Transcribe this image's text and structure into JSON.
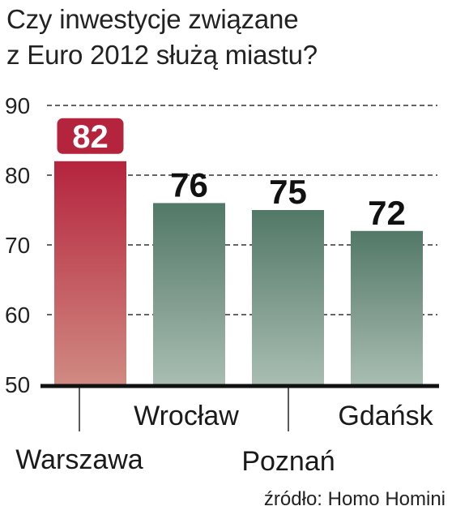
{
  "title_lines": [
    "Czy inwestycje związane",
    "z Euro 2012 służą miastu?"
  ],
  "source": "źródło: Homo Homini",
  "colors": {
    "highlight": "#b5243d",
    "highlight_light": "#d08a82",
    "bar": "#527867",
    "bar_light": "#a9bdb2",
    "grid": "#333333",
    "axis": "#111111"
  },
  "chart_data": {
    "type": "bar",
    "categories": [
      "Warszawa",
      "Wrocław",
      "Poznań",
      "Gdańsk"
    ],
    "values": [
      82,
      76,
      75,
      72
    ],
    "value_labels": [
      "82",
      "76",
      "75",
      "72"
    ],
    "highlighted": [
      "Warszawa"
    ],
    "yticks": [
      "50",
      "60",
      "70",
      "80",
      "90"
    ],
    "ylim": [
      50,
      90
    ],
    "grid": true,
    "grid_style": "dashed"
  }
}
